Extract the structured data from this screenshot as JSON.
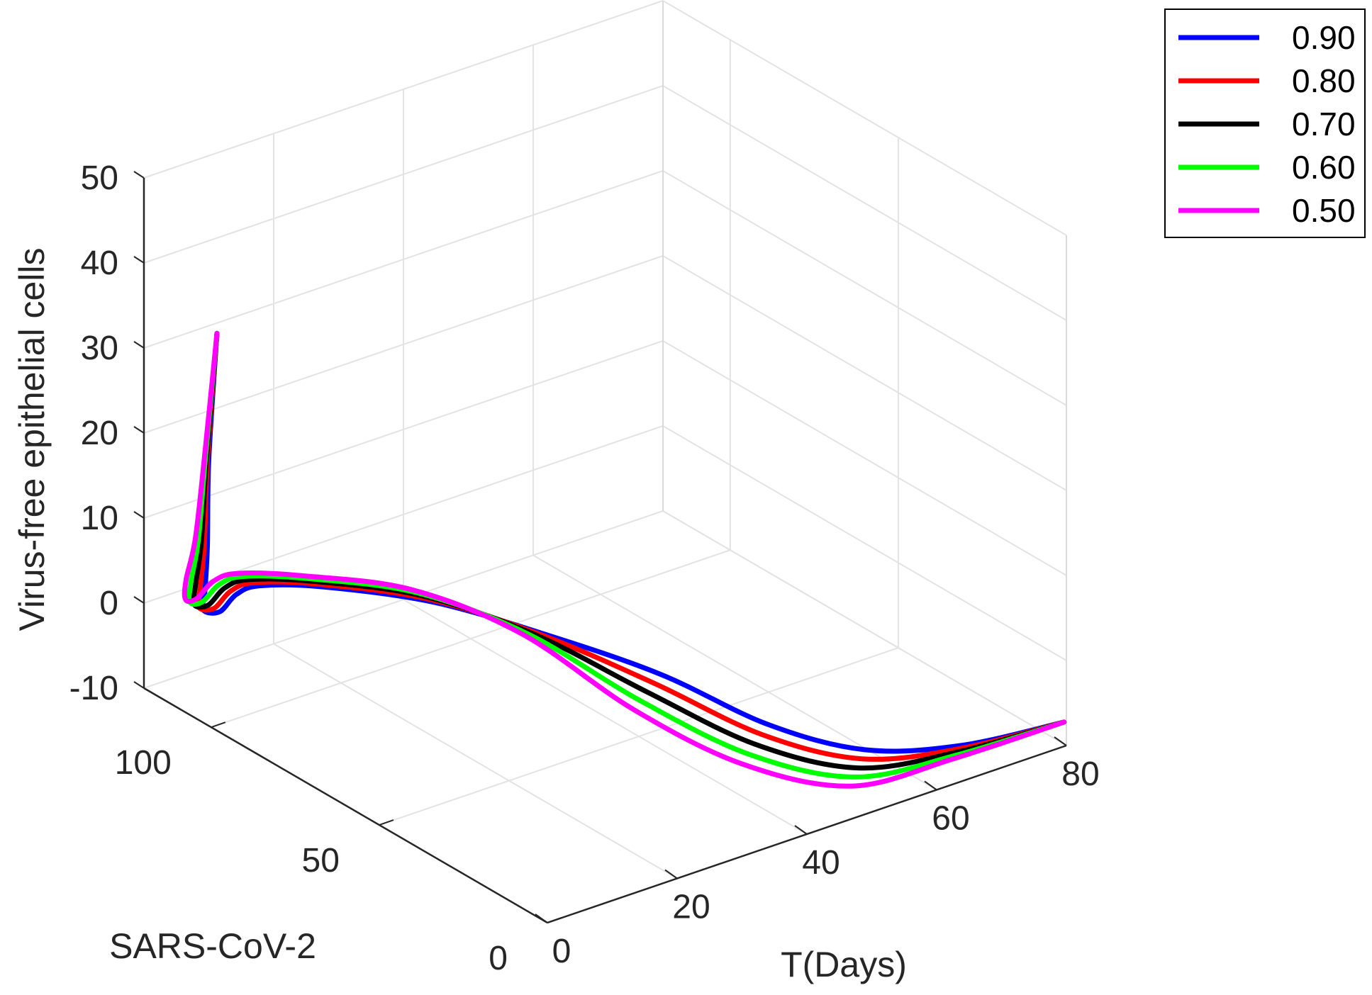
{
  "chart_data": {
    "type": "line3d",
    "title": "",
    "xlabel": "T(Days)",
    "ylabel": "SARS-CoV-2",
    "zlabel": "Virus-free epithelial cells",
    "xlim": [
      0,
      80
    ],
    "ylim": [
      0,
      120
    ],
    "zlim": [
      -10,
      50
    ],
    "xticks": [
      "0",
      "20",
      "40",
      "60",
      "80"
    ],
    "yticks": [
      "0",
      "50",
      "100"
    ],
    "zticks": [
      "-10",
      "0",
      "10",
      "20",
      "30",
      "40",
      "50"
    ],
    "legend_position": "top-right",
    "series": [
      {
        "name": "0.90",
        "color": "#0000ff",
        "points": [
          [
            0.01,
            98.3,
            36.7
          ],
          [
            0.2,
            101.1,
            21.1
          ],
          [
            0.5,
            102.1,
            10.7
          ],
          [
            1.0,
            103.8,
            4.9
          ],
          [
            1.5,
            105.3,
            2.2
          ],
          [
            2.5,
            102.3,
            2.4
          ],
          [
            3.5,
            99.2,
            4.9
          ],
          [
            5.0,
            95.3,
            6.4
          ],
          [
            10.0,
            86.6,
            7.0
          ],
          [
            20.0,
            72.6,
            5.8
          ],
          [
            30.0,
            58.0,
            2.7
          ],
          [
            40.0,
            43.4,
            -1.2
          ],
          [
            50.0,
            30.8,
            -6.8
          ],
          [
            60.0,
            21.4,
            -10.2
          ],
          [
            70.0,
            12.2,
            -10.2
          ],
          [
            80.0,
            0.7,
            -7.4
          ]
        ]
      },
      {
        "name": "0.80",
        "color": "#ff0000",
        "points": [
          [
            0.01,
            98.3,
            36.7
          ],
          [
            0.2,
            101.5,
            21.1
          ],
          [
            0.5,
            103.0,
            10.7
          ],
          [
            1.0,
            105.2,
            4.9
          ],
          [
            1.5,
            106.6,
            2.2
          ],
          [
            2.5,
            104.0,
            2.4
          ],
          [
            3.5,
            100.9,
            4.9
          ],
          [
            5.0,
            96.9,
            6.4
          ],
          [
            10.0,
            88.0,
            7.0
          ],
          [
            20.0,
            74.2,
            5.8
          ],
          [
            30.0,
            59.9,
            2.3
          ],
          [
            40.0,
            45.4,
            -2.7
          ],
          [
            50.0,
            32.7,
            -8.4
          ],
          [
            60.0,
            22.4,
            -11.5
          ],
          [
            70.0,
            12.7,
            -10.7
          ],
          [
            80.0,
            0.7,
            -7.4
          ]
        ]
      },
      {
        "name": "0.70",
        "color": "#000000",
        "points": [
          [
            0.01,
            98.3,
            36.7
          ],
          [
            0.2,
            101.8,
            21.1
          ],
          [
            0.5,
            103.9,
            10.7
          ],
          [
            1.0,
            106.6,
            4.9
          ],
          [
            1.5,
            107.9,
            2.2
          ],
          [
            2.5,
            105.7,
            2.4
          ],
          [
            3.5,
            102.6,
            4.9
          ],
          [
            5.0,
            98.5,
            6.4
          ],
          [
            10.0,
            89.4,
            7.0
          ],
          [
            20.0,
            75.8,
            5.8
          ],
          [
            30.0,
            61.8,
            1.9
          ],
          [
            40.0,
            47.4,
            -4.2
          ],
          [
            50.0,
            34.6,
            -10.0
          ],
          [
            60.0,
            23.4,
            -12.8
          ],
          [
            70.0,
            13.2,
            -11.2
          ],
          [
            80.0,
            0.7,
            -7.4
          ]
        ]
      },
      {
        "name": "0.60",
        "color": "#00ff00",
        "points": [
          [
            0.01,
            98.3,
            36.7
          ],
          [
            0.2,
            102.1,
            21.1
          ],
          [
            0.5,
            104.8,
            10.7
          ],
          [
            1.0,
            108.0,
            4.9
          ],
          [
            1.5,
            109.2,
            2.2
          ],
          [
            2.5,
            107.4,
            2.4
          ],
          [
            3.5,
            104.3,
            4.9
          ],
          [
            5.0,
            100.1,
            6.4
          ],
          [
            10.0,
            90.8,
            7.0
          ],
          [
            20.0,
            77.4,
            5.8
          ],
          [
            30.0,
            63.7,
            1.5
          ],
          [
            40.0,
            49.4,
            -5.7
          ],
          [
            50.0,
            36.5,
            -11.6
          ],
          [
            60.0,
            24.4,
            -14.1
          ],
          [
            70.0,
            13.7,
            -11.7
          ],
          [
            80.0,
            0.7,
            -7.4
          ]
        ]
      },
      {
        "name": "0.50",
        "color": "#ff00ff",
        "points": [
          [
            0.01,
            98.3,
            36.7
          ],
          [
            0.2,
            102.4,
            21.1
          ],
          [
            0.5,
            105.7,
            10.7
          ],
          [
            1.0,
            109.4,
            4.9
          ],
          [
            1.5,
            110.5,
            2.2
          ],
          [
            2.5,
            109.1,
            2.4
          ],
          [
            3.5,
            106.0,
            4.9
          ],
          [
            5.0,
            101.7,
            6.4
          ],
          [
            10.0,
            92.2,
            7.0
          ],
          [
            20.0,
            79.0,
            5.8
          ],
          [
            30.0,
            65.6,
            1.1
          ],
          [
            40.0,
            51.4,
            -7.2
          ],
          [
            50.0,
            38.4,
            -13.2
          ],
          [
            60.0,
            25.4,
            -15.4
          ],
          [
            70.0,
            14.2,
            -12.2
          ],
          [
            80.0,
            0.7,
            -7.4
          ]
        ]
      }
    ]
  }
}
